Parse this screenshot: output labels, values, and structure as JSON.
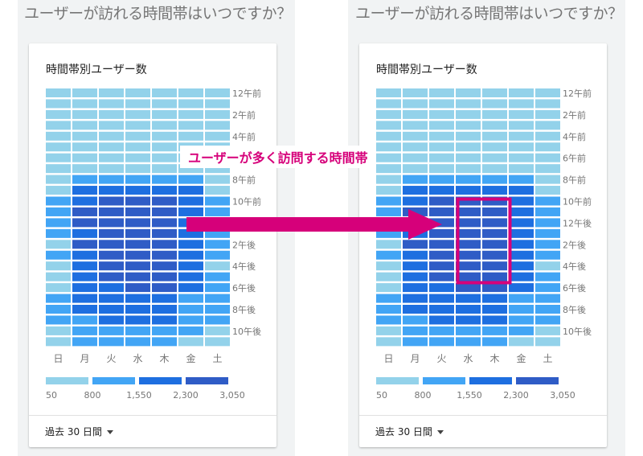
{
  "question": "ユーザーが訪れる時間帯はいつですか？",
  "chart_title": "時間帯別ユーザー数",
  "date_range": "過去 30 日間",
  "annotation": "ユーザーが多く訪問する時間帯",
  "colors": {
    "scale": [
      "#93d2ea",
      "#42a5f5",
      "#1e6fe0",
      "#2f5cc6"
    ],
    "accent": "#d6007a"
  },
  "chart_data": {
    "type": "heatmap",
    "x_categories": [
      "日",
      "月",
      "火",
      "水",
      "木",
      "金",
      "土"
    ],
    "y_tick_labels": [
      "12午前",
      "2午前",
      "4午前",
      "6午前",
      "8午前",
      "10午前",
      "12午後",
      "2午後",
      "4午後",
      "6午後",
      "8午後",
      "10午後"
    ],
    "legend_values": [
      "50",
      "800",
      "1,550",
      "2,300",
      "3,050"
    ],
    "value_levels": [
      [
        0,
        0,
        0,
        0,
        0,
        0,
        0
      ],
      [
        0,
        0,
        0,
        0,
        0,
        0,
        0
      ],
      [
        0,
        0,
        0,
        0,
        0,
        0,
        0
      ],
      [
        0,
        0,
        0,
        0,
        0,
        0,
        0
      ],
      [
        0,
        0,
        0,
        0,
        0,
        0,
        0
      ],
      [
        0,
        0,
        0,
        0,
        0,
        0,
        0
      ],
      [
        0,
        0,
        0,
        0,
        0,
        0,
        0
      ],
      [
        0,
        0,
        0,
        0,
        0,
        0,
        0
      ],
      [
        0,
        1,
        1,
        1,
        1,
        1,
        0
      ],
      [
        0,
        2,
        2,
        2,
        2,
        2,
        0
      ],
      [
        1,
        2,
        3,
        3,
        3,
        2,
        1
      ],
      [
        1,
        3,
        3,
        3,
        3,
        2,
        1
      ],
      [
        1,
        3,
        3,
        3,
        3,
        2,
        1
      ],
      [
        1,
        2,
        3,
        3,
        3,
        2,
        1
      ],
      [
        0,
        3,
        3,
        3,
        3,
        2,
        1
      ],
      [
        1,
        2,
        3,
        3,
        3,
        2,
        1
      ],
      [
        0,
        2,
        3,
        3,
        3,
        2,
        0
      ],
      [
        0,
        2,
        3,
        3,
        3,
        2,
        1
      ],
      [
        0,
        2,
        2,
        3,
        3,
        2,
        1
      ],
      [
        1,
        2,
        2,
        2,
        2,
        1,
        1
      ],
      [
        1,
        2,
        2,
        2,
        2,
        1,
        1
      ],
      [
        1,
        1,
        2,
        2,
        2,
        1,
        1
      ],
      [
        0,
        1,
        1,
        1,
        1,
        1,
        0
      ],
      [
        0,
        1,
        1,
        1,
        1,
        0,
        0
      ]
    ],
    "highlight": {
      "days": [
        "水",
        "木"
      ],
      "hours": [
        "12午後",
        "6午後"
      ]
    }
  }
}
